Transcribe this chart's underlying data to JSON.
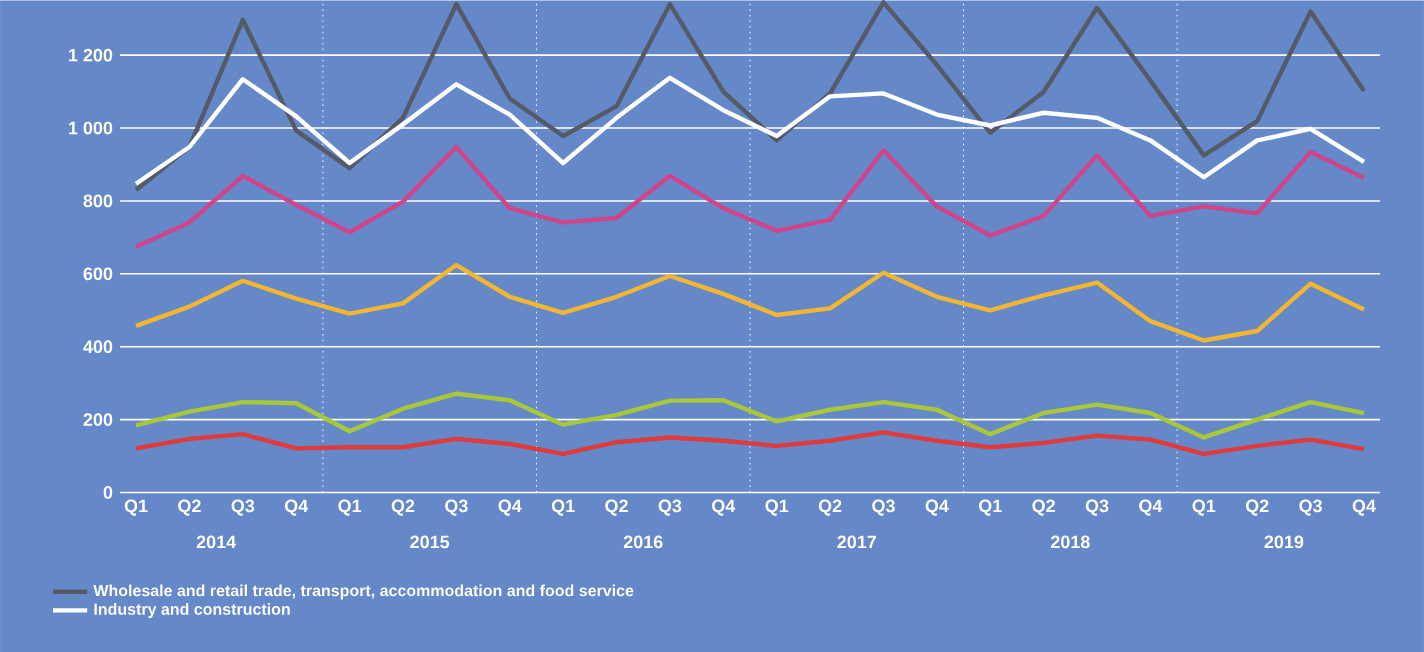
{
  "chart_data": {
    "type": "line",
    "categories": [
      "Q1",
      "Q2",
      "Q3",
      "Q4",
      "Q1",
      "Q2",
      "Q3",
      "Q4",
      "Q1",
      "Q2",
      "Q3",
      "Q4",
      "Q1",
      "Q2",
      "Q3",
      "Q4",
      "Q1",
      "Q2",
      "Q3",
      "Q4",
      "Q1",
      "Q2",
      "Q3",
      "Q4"
    ],
    "series": [
      {
        "name": "Wholesale and retail trade, transport, accommodation and food service",
        "color": "#555a66",
        "values": [
          830,
          948,
          1297,
          993,
          890,
          1028,
          1340,
          1081,
          978,
          1060,
          1340,
          1100,
          966,
          1095,
          1345,
          1173,
          987,
          1099,
          1330,
          1130,
          925,
          1019,
          1320,
          1102
        ]
      },
      {
        "name": "Industry and construction",
        "color": "#ffffff",
        "values": [
          847,
          948,
          1134,
          1032,
          904,
          1010,
          1120,
          1037,
          904,
          1028,
          1138,
          1049,
          978,
          1087,
          1095,
          1037,
          1007,
          1042,
          1028,
          966,
          865,
          966,
          998,
          907
        ]
      },
      {
        "color": "#d0458a",
        "values": [
          674,
          741,
          869,
          789,
          714,
          798,
          948,
          780,
          741,
          753,
          869,
          780,
          718,
          748,
          939,
          785,
          705,
          759,
          925,
          759,
          785,
          766,
          934,
          863
        ]
      },
      {
        "color": "#f2b632",
        "values": [
          457,
          510,
          581,
          532,
          491,
          519,
          624,
          537,
          493,
          537,
          594,
          545,
          487,
          505,
          603,
          537,
          500,
          541,
          576,
          470,
          417,
          443,
          573,
          502
        ]
      },
      {
        "color": "#a8c83a",
        "values": [
          184,
          222,
          248,
          245,
          168,
          230,
          271,
          253,
          186,
          213,
          252,
          253,
          195,
          227,
          248,
          227,
          160,
          218,
          241,
          218,
          151,
          200,
          248,
          218
        ]
      },
      {
        "color": "#e03a3a",
        "values": [
          121,
          147,
          160,
          121,
          124,
          124,
          147,
          133,
          106,
          138,
          151,
          142,
          128,
          142,
          165,
          142,
          124,
          136,
          156,
          145,
          106,
          128,
          145,
          119
        ]
      }
    ],
    "ylim": [
      0,
      1350
    ],
    "yticks": [
      0,
      200,
      400,
      600,
      800,
      {
        "value": 1000,
        "label": "1 000"
      },
      {
        "value": 1200,
        "label": "1 200"
      }
    ],
    "grid": "y",
    "legend": "bottom",
    "annotations": [
      "2014",
      "2015",
      "2016",
      "2017",
      "2018",
      "2019"
    ]
  }
}
